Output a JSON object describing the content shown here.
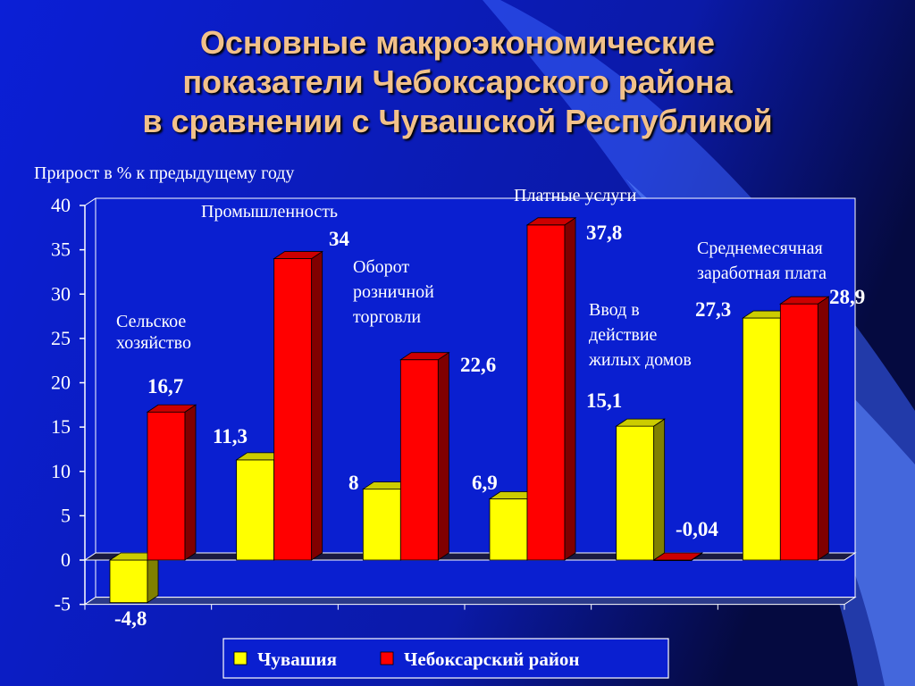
{
  "title_lines": [
    "Основные макроэкономические",
    "показатели Чебоксарского района",
    "в сравнении с Чувашской Республикой"
  ],
  "colors": {
    "chuvashia": "#ffff00",
    "district": "#ff0000",
    "background": "#0a1fd0"
  },
  "chart_data": {
    "type": "bar",
    "ylabel": "Прирост в % к предыдущему году",
    "ylim": [
      -5,
      40
    ],
    "yticks": [
      40,
      35,
      30,
      25,
      20,
      15,
      10,
      5,
      0,
      -5
    ],
    "categories": [
      "Сельское хозяйство",
      "Промышленность",
      "Оборот розничной торговли",
      "Платные услуги",
      "Ввод в действие жилых домов",
      "Среднемесячная заработная плата"
    ],
    "category_label_lines": [
      [
        "Сельское",
        "хозяйство"
      ],
      [
        "Промышленность"
      ],
      [
        "Оборот",
        "розничной",
        "торговли"
      ],
      [
        "Платные услуги"
      ],
      [
        "Ввод в",
        "действие",
        "жилых домов"
      ],
      [
        "Среднемесячная",
        "заработная плата"
      ]
    ],
    "series": [
      {
        "name": "Чувашия",
        "values": [
          -4.8,
          11.3,
          8,
          6.9,
          15.1,
          27.3
        ],
        "labels": [
          "-4,8",
          "11,3",
          "8",
          "6,9",
          "15,1",
          "27,3"
        ]
      },
      {
        "name": "Чебоксарский район",
        "values": [
          16.7,
          34,
          22.6,
          37.8,
          -0.04,
          28.9
        ],
        "labels": [
          "16,7",
          "34",
          "22,6",
          "37,8",
          "-0,04",
          "28,9"
        ]
      }
    ],
    "legend_position": "bottom",
    "grid": false
  }
}
